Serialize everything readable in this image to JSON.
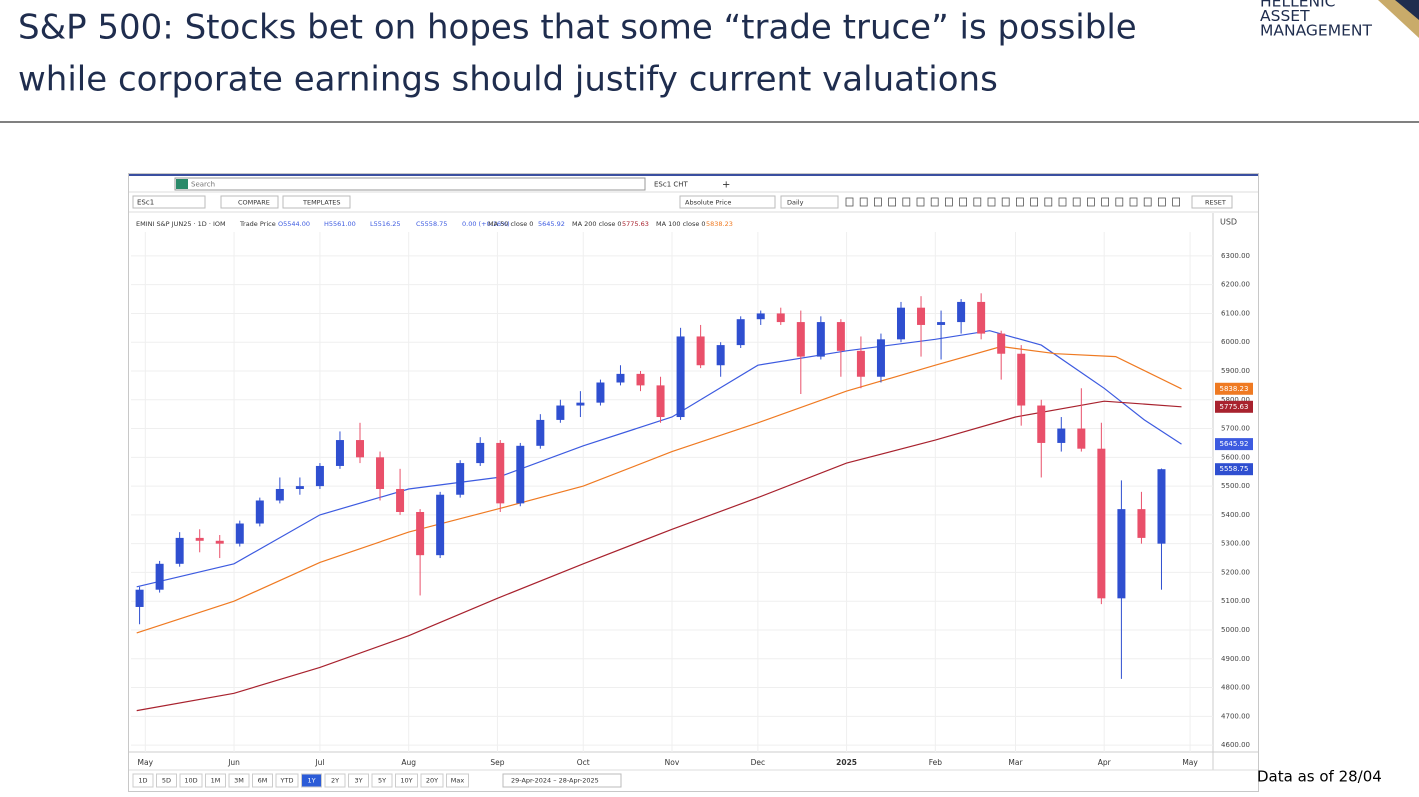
{
  "slide": {
    "title_lines": [
      "S&P 500: Stocks bet on hopes that some “trade truce” is possible",
      "while corporate earnings should justify current valuations"
    ],
    "logo_lines": [
      "HELLENIC",
      "ASSET",
      "MANAGEMENT"
    ],
    "footnote": "Data as of 28/04"
  },
  "app": {
    "search": "Search",
    "tab": "ESc1 CHT",
    "new_tab": "+",
    "symbol": "ESc1",
    "compare": "COMPARE",
    "templates": "TEMPLATES",
    "price_mode": "Absolute Price",
    "interval": "Daily",
    "reset": "RESET",
    "currency": "USD",
    "readout": [
      "EMINI S&P JUN25 · 1D · IOM",
      "Trade Price",
      "O5544.00",
      "H5561.00",
      "L5516.25",
      "C5558.75",
      "0.00 (+0.16%)"
    ],
    "ranges": [
      "1D",
      "5D",
      "10D",
      "1M",
      "3M",
      "6M",
      "YTD",
      "1Y",
      "2Y",
      "3Y",
      "5Y",
      "10Y",
      "20Y",
      "Max"
    ],
    "active_range": "1Y",
    "date_range": "29-Apr-2024 – 28-Apr-2025"
  },
  "chart_data": {
    "type": "candlestick",
    "up_color": "#2f4fd0",
    "down_color": "#e9506a",
    "xlim": [
      "2024-04-26",
      "2025-05-09"
    ],
    "xticks": [
      {
        "value": "2024-05-01",
        "label": "May"
      },
      {
        "value": "2024-06-01",
        "label": "Jun"
      },
      {
        "value": "2024-07-01",
        "label": "Jul"
      },
      {
        "value": "2024-08-01",
        "label": "Aug"
      },
      {
        "value": "2024-09-01",
        "label": "Sep"
      },
      {
        "value": "2024-10-01",
        "label": "Oct"
      },
      {
        "value": "2024-11-01",
        "label": "Nov"
      },
      {
        "value": "2024-12-01",
        "label": "Dec"
      },
      {
        "value": "2025-01-01",
        "label": "2025"
      },
      {
        "value": "2025-02-01",
        "label": "Feb"
      },
      {
        "value": "2025-03-01",
        "label": "Mar"
      },
      {
        "value": "2025-04-01",
        "label": "Apr"
      },
      {
        "value": "2025-05-01",
        "label": "May"
      }
    ],
    "ylim": [
      4576,
      6383
    ],
    "yticks": [
      {
        "value": 4600,
        "label": "4600.00"
      },
      {
        "value": 4700,
        "label": "4700.00"
      },
      {
        "value": 4800,
        "label": "4800.00"
      },
      {
        "value": 4900,
        "label": "4900.00"
      },
      {
        "value": 5000,
        "label": "5000.00"
      },
      {
        "value": 5100,
        "label": "5100.00"
      },
      {
        "value": 5200,
        "label": "5200.00"
      },
      {
        "value": 5300,
        "label": "5300.00"
      },
      {
        "value": 5400,
        "label": "5400.00"
      },
      {
        "value": 5500,
        "label": "5500.00"
      },
      {
        "value": 5600,
        "label": "5600.00"
      },
      {
        "value": 5700,
        "label": "5700.00"
      },
      {
        "value": 5800,
        "label": "5800.00"
      },
      {
        "value": 5900,
        "label": "5900.00"
      },
      {
        "value": 6000,
        "label": "6000.00"
      },
      {
        "value": 6100,
        "label": "6100.00"
      },
      {
        "value": 6200,
        "label": "6200.00"
      },
      {
        "value": 6300,
        "label": "6300.00"
      }
    ],
    "grid": true,
    "candles": {
      "x": [
        "2024-04-29",
        "2024-05-06",
        "2024-05-13",
        "2024-05-20",
        "2024-05-27",
        "2024-06-03",
        "2024-06-10",
        "2024-06-17",
        "2024-06-24",
        "2024-07-01",
        "2024-07-08",
        "2024-07-15",
        "2024-07-22",
        "2024-07-29",
        "2024-08-05",
        "2024-08-12",
        "2024-08-19",
        "2024-08-26",
        "2024-09-02",
        "2024-09-09",
        "2024-09-16",
        "2024-09-23",
        "2024-09-30",
        "2024-10-07",
        "2024-10-14",
        "2024-10-21",
        "2024-10-28",
        "2024-11-04",
        "2024-11-11",
        "2024-11-18",
        "2024-11-25",
        "2024-12-02",
        "2024-12-09",
        "2024-12-16",
        "2024-12-23",
        "2024-12-30",
        "2025-01-06",
        "2025-01-13",
        "2025-01-20",
        "2025-01-27",
        "2025-02-03",
        "2025-02-10",
        "2025-02-17",
        "2025-02-24",
        "2025-03-03",
        "2025-03-10",
        "2025-03-17",
        "2025-03-24",
        "2025-03-31",
        "2025-04-07",
        "2025-04-14",
        "2025-04-21"
      ],
      "open": [
        5080,
        5140,
        5230,
        5320,
        5310,
        5300,
        5370,
        5450,
        5490,
        5500,
        5570,
        5660,
        5600,
        5490,
        5410,
        5260,
        5470,
        5580,
        5650,
        5440,
        5640,
        5730,
        5780,
        5790,
        5860,
        5890,
        5850,
        5740,
        6020,
        5920,
        5990,
        6080,
        6100,
        6070,
        5950,
        6070,
        5970,
        5880,
        6010,
        6120,
        6060,
        6070,
        6140,
        6030,
        5960,
        5780,
        5650,
        5700,
        5630,
        5110,
        5420,
        5300
      ],
      "high": [
        5150,
        5240,
        5340,
        5350,
        5330,
        5380,
        5460,
        5530,
        5530,
        5580,
        5690,
        5720,
        5620,
        5560,
        5420,
        5480,
        5590,
        5670,
        5660,
        5650,
        5750,
        5800,
        5830,
        5870,
        5920,
        5900,
        5880,
        6050,
        6060,
        6000,
        6090,
        6110,
        6120,
        6110,
        6090,
        6080,
        6020,
        6030,
        6140,
        6160,
        6110,
        6150,
        6170,
        6040,
        5990,
        5800,
        5740,
        5840,
        5720,
        5520,
        5480,
        5561
      ],
      "low": [
        5020,
        5130,
        5220,
        5270,
        5250,
        5290,
        5360,
        5440,
        5470,
        5490,
        5560,
        5580,
        5450,
        5400,
        5120,
        5250,
        5460,
        5570,
        5410,
        5430,
        5630,
        5720,
        5740,
        5780,
        5850,
        5830,
        5720,
        5730,
        5910,
        5880,
        5980,
        6060,
        6060,
        5820,
        5940,
        5880,
        5840,
        5860,
        6000,
        5950,
        5940,
        6030,
        6010,
        5870,
        5710,
        5530,
        5620,
        5620,
        5090,
        4830,
        5300,
        5140
      ],
      "close": [
        5140,
        5230,
        5320,
        5310,
        5300,
        5370,
        5450,
        5490,
        5500,
        5570,
        5660,
        5600,
        5490,
        5410,
        5260,
        5470,
        5580,
        5650,
        5440,
        5640,
        5730,
        5780,
        5790,
        5860,
        5890,
        5850,
        5740,
        6020,
        5920,
        5990,
        6080,
        6100,
        6070,
        5950,
        6070,
        5970,
        5880,
        6010,
        6120,
        6060,
        6070,
        6140,
        6030,
        5960,
        5780,
        5650,
        5700,
        5630,
        5110,
        5420,
        5320,
        5558.75
      ]
    },
    "series": [
      {
        "name": "MA 50 close 0",
        "color": "#3d5be0",
        "x": [
          "2024-04-28",
          "2024-06-01",
          "2024-07-01",
          "2024-08-01",
          "2024-09-01",
          "2024-10-01",
          "2024-11-01",
          "2024-12-01",
          "2025-01-01",
          "2025-02-01",
          "2025-02-20",
          "2025-03-10",
          "2025-04-01",
          "2025-04-15",
          "2025-04-28"
        ],
        "values": [
          5150,
          5230,
          5400,
          5490,
          5530,
          5640,
          5740,
          5920,
          5970,
          6010,
          6040,
          5990,
          5840,
          5730,
          5645.92
        ]
      },
      {
        "name": "MA 200 close 0",
        "color": "#a8222e",
        "x": [
          "2024-04-28",
          "2024-06-01",
          "2024-07-01",
          "2024-08-01",
          "2024-09-01",
          "2024-10-01",
          "2024-11-01",
          "2024-12-01",
          "2025-01-01",
          "2025-02-01",
          "2025-03-01",
          "2025-04-01",
          "2025-04-28"
        ],
        "values": [
          4720,
          4780,
          4870,
          4980,
          5110,
          5230,
          5350,
          5460,
          5580,
          5660,
          5740,
          5795,
          5775.63
        ]
      },
      {
        "name": "MA 100 close 0",
        "color": "#ef7a22",
        "x": [
          "2024-04-28",
          "2024-06-01",
          "2024-07-01",
          "2024-08-01",
          "2024-09-01",
          "2024-10-01",
          "2024-11-01",
          "2024-12-01",
          "2025-01-01",
          "2025-02-01",
          "2025-02-24",
          "2025-03-15",
          "2025-04-05",
          "2025-04-28"
        ],
        "values": [
          4990,
          5100,
          5235,
          5340,
          5420,
          5500,
          5620,
          5720,
          5830,
          5920,
          5985,
          5960,
          5950,
          5838.23
        ]
      }
    ]
  }
}
